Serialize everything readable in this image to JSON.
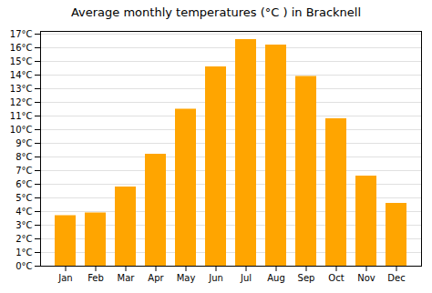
{
  "chart_data": {
    "type": "bar",
    "title": "Average monthly temperatures (°C ) in Bracknell",
    "categories": [
      "Jan",
      "Feb",
      "Mar",
      "Apr",
      "May",
      "Jun",
      "Jul",
      "Aug",
      "Sep",
      "Oct",
      "Nov",
      "Dec"
    ],
    "values": [
      3.7,
      3.9,
      5.8,
      8.2,
      11.5,
      14.6,
      16.6,
      16.2,
      13.9,
      10.8,
      6.6,
      4.6
    ],
    "color": "#FFA500",
    "ylim": [
      0,
      17.2
    ],
    "yticks": [
      {
        "value": 0,
        "label": "0°C"
      },
      {
        "value": 1,
        "label": "1°C"
      },
      {
        "value": 2,
        "label": "2°C"
      },
      {
        "value": 3,
        "label": "3°C"
      },
      {
        "value": 4,
        "label": "4°C"
      },
      {
        "value": 5,
        "label": "5°C"
      },
      {
        "value": 6,
        "label": "6°C"
      },
      {
        "value": 7,
        "label": "7°C"
      },
      {
        "value": 8,
        "label": "8°C"
      },
      {
        "value": 9,
        "label": "9°C"
      },
      {
        "value": 10,
        "label": "10°C"
      },
      {
        "value": 11,
        "label": "11°C"
      },
      {
        "value": 12,
        "label": "12°C"
      },
      {
        "value": 13,
        "label": "13°C"
      },
      {
        "value": 14,
        "label": "14°C"
      },
      {
        "value": 15,
        "label": "15°C"
      },
      {
        "value": 16,
        "label": "16°C"
      },
      {
        "value": 17,
        "label": "17°C"
      }
    ],
    "grid": true
  }
}
